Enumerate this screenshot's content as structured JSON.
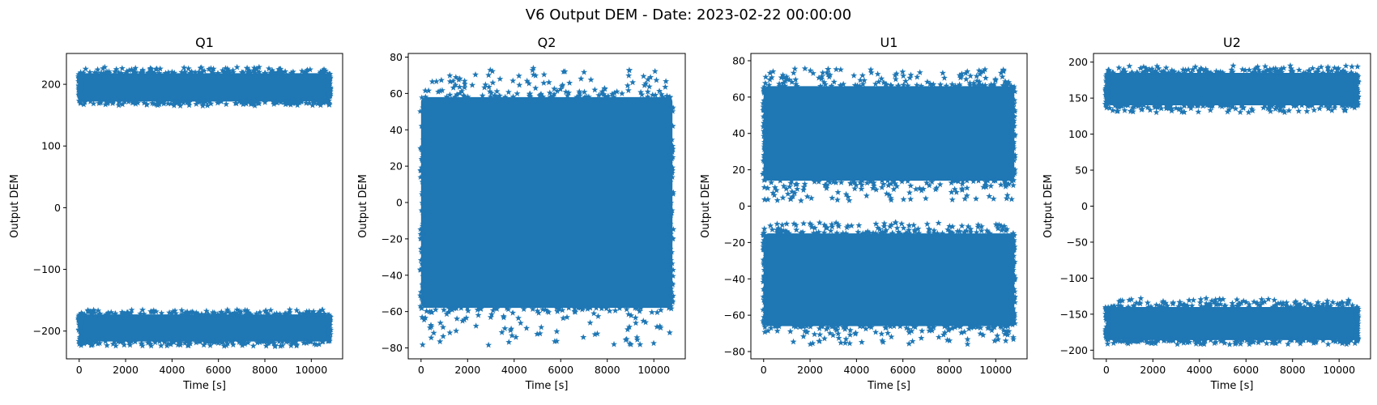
{
  "figure": {
    "suptitle": "V6 Output DEM - Date: 2023-02-22 00:00:00",
    "marker": "star",
    "series_color": "#1f77b4"
  },
  "chart_data": [
    {
      "type": "scatter",
      "title": "Q1",
      "xlabel": "Time [s]",
      "ylabel": "Output DEM",
      "xlim": [
        -550,
        11350
      ],
      "ylim": [
        -245,
        250
      ],
      "xticks": [
        0,
        2000,
        4000,
        6000,
        8000,
        10000
      ],
      "yticks": [
        -200,
        -100,
        0,
        100,
        200
      ],
      "x_range": [
        0,
        10800
      ],
      "bands": [
        {
          "y_center": 195,
          "y_low": 172,
          "y_high": 218,
          "y_min_outlier": 165,
          "y_max_outlier": 228
        },
        {
          "y_center": -195,
          "y_low": -217,
          "y_high": -173,
          "y_min_outlier": -225,
          "y_max_outlier": -165
        }
      ]
    },
    {
      "type": "scatter",
      "title": "Q2",
      "xlabel": "Time [s]",
      "ylabel": "Output DEM",
      "xlim": [
        -550,
        11350
      ],
      "ylim": [
        -86,
        82
      ],
      "xticks": [
        0,
        2000,
        4000,
        6000,
        8000,
        10000
      ],
      "yticks": [
        -80,
        -60,
        -40,
        -20,
        0,
        20,
        40,
        60,
        80
      ],
      "x_range": [
        0,
        10800
      ],
      "bands": [
        {
          "y_center": 0,
          "y_low": -58,
          "y_high": 58,
          "y_min_outlier": -79,
          "y_max_outlier": 74
        }
      ]
    },
    {
      "type": "scatter",
      "title": "U1",
      "xlabel": "Time [s]",
      "ylabel": "Output DEM",
      "xlim": [
        -550,
        11350
      ],
      "ylim": [
        -84,
        84
      ],
      "xticks": [
        0,
        2000,
        4000,
        6000,
        8000,
        10000
      ],
      "yticks": [
        -80,
        -60,
        -40,
        -20,
        0,
        20,
        40,
        60,
        80
      ],
      "x_range": [
        0,
        10800
      ],
      "bands": [
        {
          "y_center": 40,
          "y_low": 14,
          "y_high": 66,
          "y_min_outlier": 3,
          "y_max_outlier": 76
        },
        {
          "y_center": -40,
          "y_low": -66,
          "y_high": -15,
          "y_min_outlier": -76,
          "y_max_outlier": -9
        }
      ]
    },
    {
      "type": "scatter",
      "title": "U2",
      "xlabel": "Time [s]",
      "ylabel": "Output DEM",
      "xlim": [
        -550,
        11350
      ],
      "ylim": [
        -212,
        212
      ],
      "xticks": [
        0,
        2000,
        4000,
        6000,
        8000,
        10000
      ],
      "yticks": [
        -200,
        -150,
        -100,
        -50,
        0,
        50,
        100,
        150,
        200
      ],
      "x_range": [
        0,
        10800
      ],
      "bands": [
        {
          "y_center": 162,
          "y_low": 140,
          "y_high": 185,
          "y_min_outlier": 130,
          "y_max_outlier": 195
        },
        {
          "y_center": -162,
          "y_low": -186,
          "y_high": -140,
          "y_min_outlier": -192,
          "y_max_outlier": -128
        }
      ]
    }
  ]
}
